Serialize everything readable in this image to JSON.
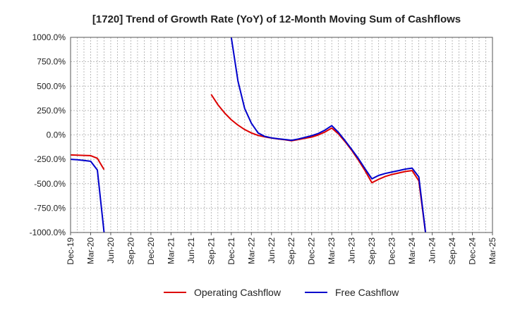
{
  "chart_data": {
    "type": "line",
    "title": "[1720]  Trend of Growth Rate (YoY) of 12-Month Moving Sum of Cashflows",
    "xlabel": "",
    "ylabel": "",
    "ylim": [
      -1000,
      1000
    ],
    "y_ticks": [
      "1000.0%",
      "750.0%",
      "500.0%",
      "250.0%",
      "0.0%",
      "-250.0%",
      "-500.0%",
      "-750.0%",
      "-1000.0%"
    ],
    "x_ticks": [
      "Dec-19",
      "Mar-20",
      "Jun-20",
      "Sep-20",
      "Dec-20",
      "Mar-21",
      "Jun-21",
      "Sep-21",
      "Dec-21",
      "Mar-22",
      "Jun-22",
      "Sep-22",
      "Dec-22",
      "Mar-23",
      "Jun-23",
      "Sep-23",
      "Dec-23",
      "Mar-24",
      "Jun-24",
      "Sep-24",
      "Dec-24",
      "Mar-25"
    ],
    "x_range": [
      "2019-12",
      "2025-03"
    ],
    "grid": true,
    "legend_position": "bottom",
    "series": [
      {
        "name": "Operating Cashflow",
        "color": "#dd0000",
        "segments": [
          [
            [
              "2019-12",
              -205
            ],
            [
              "2020-01",
              -208
            ],
            [
              "2020-02",
              -210
            ],
            [
              "2020-03",
              -212
            ],
            [
              "2020-04",
              -240
            ],
            [
              "2020-05",
              -355
            ]
          ],
          [
            [
              "2021-09",
              415
            ],
            [
              "2021-10",
              310
            ],
            [
              "2021-11",
              225
            ],
            [
              "2021-12",
              155
            ],
            [
              "2022-01",
              100
            ],
            [
              "2022-02",
              55
            ],
            [
              "2022-03",
              20
            ],
            [
              "2022-04",
              -5
            ],
            [
              "2022-05",
              -20
            ],
            [
              "2022-06",
              -32
            ],
            [
              "2022-07",
              -42
            ],
            [
              "2022-08",
              -50
            ],
            [
              "2022-09",
              -60
            ],
            [
              "2022-10",
              -48
            ],
            [
              "2022-11",
              -35
            ],
            [
              "2022-12",
              -22
            ],
            [
              "2023-01",
              0
            ],
            [
              "2023-02",
              30
            ],
            [
              "2023-03",
              70
            ],
            [
              "2023-04",
              10
            ],
            [
              "2023-05",
              -70
            ],
            [
              "2023-06",
              -160
            ],
            [
              "2023-07",
              -260
            ],
            [
              "2023-08",
              -370
            ],
            [
              "2023-09",
              -490
            ],
            [
              "2023-10",
              -455
            ],
            [
              "2023-11",
              -425
            ],
            [
              "2023-12",
              -405
            ],
            [
              "2024-01",
              -390
            ],
            [
              "2024-02",
              -375
            ],
            [
              "2024-03",
              -365
            ],
            [
              "2024-04",
              -470
            ],
            [
              "2024-05",
              -1000
            ]
          ]
        ]
      },
      {
        "name": "Free Cashflow",
        "color": "#0000cc",
        "segments": [
          [
            [
              "2019-12",
              -250
            ],
            [
              "2020-01",
              -255
            ],
            [
              "2020-02",
              -262
            ],
            [
              "2020-03",
              -270
            ],
            [
              "2020-04",
              -360
            ],
            [
              "2020-05",
              -1000
            ]
          ],
          [
            [
              "2021-12",
              1000
            ],
            [
              "2022-01",
              550
            ],
            [
              "2022-02",
              270
            ],
            [
              "2022-03",
              120
            ],
            [
              "2022-04",
              20
            ],
            [
              "2022-05",
              -15
            ],
            [
              "2022-06",
              -30
            ],
            [
              "2022-07",
              -40
            ],
            [
              "2022-08",
              -47
            ],
            [
              "2022-09",
              -55
            ],
            [
              "2022-10",
              -42
            ],
            [
              "2022-11",
              -25
            ],
            [
              "2022-12",
              -8
            ],
            [
              "2023-01",
              15
            ],
            [
              "2023-02",
              50
            ],
            [
              "2023-03",
              95
            ],
            [
              "2023-04",
              25
            ],
            [
              "2023-05",
              -60
            ],
            [
              "2023-06",
              -150
            ],
            [
              "2023-07",
              -245
            ],
            [
              "2023-08",
              -350
            ],
            [
              "2023-09",
              -450
            ],
            [
              "2023-10",
              -415
            ],
            [
              "2023-11",
              -395
            ],
            [
              "2023-12",
              -380
            ],
            [
              "2024-01",
              -365
            ],
            [
              "2024-02",
              -350
            ],
            [
              "2024-03",
              -340
            ],
            [
              "2024-04",
              -430
            ],
            [
              "2024-05",
              -1000
            ]
          ]
        ]
      }
    ]
  }
}
